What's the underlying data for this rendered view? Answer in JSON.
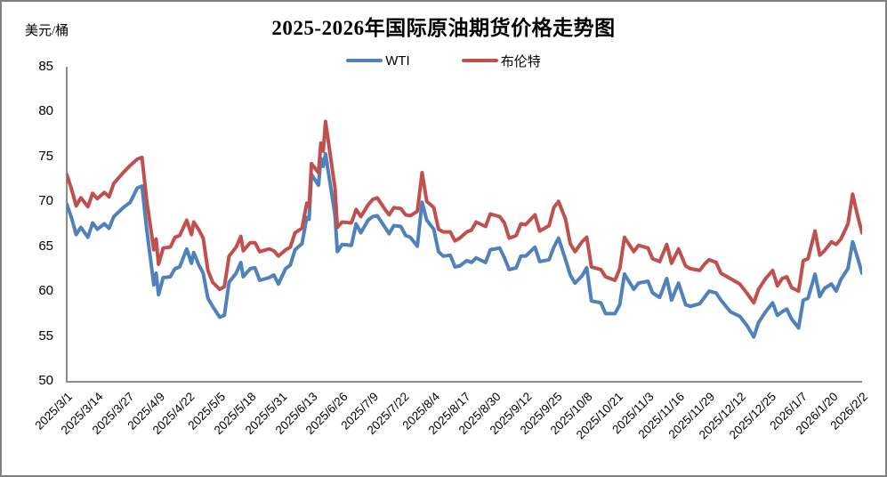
{
  "chart_data": {
    "type": "line",
    "title": "2025-2026年国际原油期货价格走势图",
    "unit_label": "美元/桶",
    "ylabel": "美元/桶",
    "xlabel": "",
    "ylim": [
      50,
      85
    ],
    "yticks": [
      85,
      80,
      75,
      70,
      65,
      60,
      55,
      50
    ],
    "grid": false,
    "legend_position": "top-center",
    "axis_color": "#8c8c8c",
    "x_tick_labels": [
      "2025/3/1",
      "2025/3/14",
      "2025/3/27",
      "2025/4/9",
      "2025/4/22",
      "2025/5/5",
      "2025/5/18",
      "2025/5/31",
      "2025/6/13",
      "2025/6/26",
      "2025/7/9",
      "2025/7/22",
      "2025/8/4",
      "2025/8/17",
      "2025/8/30",
      "2025/9/12",
      "2025/9/25",
      "2025/10/8",
      "2025/10/21",
      "2025/11/3",
      "2025/11/16",
      "2025/11/29",
      "2025/12/12",
      "2025/12/25",
      "2026/1/7",
      "2026/1/20",
      "2026/2/2"
    ],
    "x": [
      "2025/3/1",
      "2025/3/3",
      "2025/3/5",
      "2025/3/7",
      "2025/3/10",
      "2025/3/12",
      "2025/3/14",
      "2025/3/17",
      "2025/3/19",
      "2025/3/21",
      "2025/3/25",
      "2025/3/28",
      "2025/3/31",
      "2025/4/2",
      "2025/4/4",
      "2025/4/7",
      "2025/4/8",
      "2025/4/9",
      "2025/4/11",
      "2025/4/14",
      "2025/4/16",
      "2025/4/18",
      "2025/4/21",
      "2025/4/23",
      "2025/4/24",
      "2025/4/26",
      "2025/4/28",
      "2025/4/30",
      "2025/5/2",
      "2025/5/5",
      "2025/5/7",
      "2025/5/9",
      "2025/5/12",
      "2025/5/14",
      "2025/5/15",
      "2025/5/18",
      "2025/5/20",
      "2025/5/22",
      "2025/5/26",
      "2025/5/28",
      "2025/5/30",
      "2025/6/2",
      "2025/6/4",
      "2025/6/6",
      "2025/6/9",
      "2025/6/11",
      "2025/6/12",
      "2025/6/13",
      "2025/6/16",
      "2025/6/17",
      "2025/6/18",
      "2025/6/19",
      "2025/6/23",
      "2025/6/24",
      "2025/6/26",
      "2025/6/30",
      "2025/7/2",
      "2025/7/4",
      "2025/7/7",
      "2025/7/9",
      "2025/7/11",
      "2025/7/14",
      "2025/7/16",
      "2025/7/18",
      "2025/7/21",
      "2025/7/23",
      "2025/7/25",
      "2025/7/28",
      "2025/7/30",
      "2025/8/1",
      "2025/8/4",
      "2025/8/6",
      "2025/8/8",
      "2025/8/11",
      "2025/8/13",
      "2025/8/15",
      "2025/8/18",
      "2025/8/20",
      "2025/8/22",
      "2025/8/26",
      "2025/8/28",
      "2025/9/1",
      "2025/9/3",
      "2025/9/5",
      "2025/9/8",
      "2025/9/10",
      "2025/9/12",
      "2025/9/16",
      "2025/9/18",
      "2025/9/22",
      "2025/9/24",
      "2025/9/26",
      "2025/9/29",
      "2025/10/1",
      "2025/10/3",
      "2025/10/6",
      "2025/10/8",
      "2025/10/10",
      "2025/10/14",
      "2025/10/16",
      "2025/10/20",
      "2025/10/22",
      "2025/10/24",
      "2025/10/28",
      "2025/10/30",
      "2025/11/3",
      "2025/11/5",
      "2025/11/8",
      "2025/11/11",
      "2025/11/13",
      "2025/11/16",
      "2025/11/19",
      "2025/11/21",
      "2025/11/25",
      "2025/11/27",
      "2025/11/29",
      "2025/12/2",
      "2025/12/4",
      "2025/12/8",
      "2025/12/12",
      "2025/12/15",
      "2025/12/18",
      "2025/12/20",
      "2025/12/23",
      "2025/12/26",
      "2025/12/28",
      "2025/12/30",
      "2026/1/1",
      "2026/1/3",
      "2026/1/6",
      "2026/1/8",
      "2026/1/10",
      "2026/1/13",
      "2026/1/15",
      "2026/1/17",
      "2026/1/20",
      "2026/1/22",
      "2026/1/24",
      "2026/1/27",
      "2026/1/29",
      "2026/1/31",
      "2026/2/2"
    ],
    "series": [
      {
        "name": "WTI",
        "color": "#4F81BD",
        "values": [
          69.7,
          68.2,
          66.3,
          67.1,
          66.0,
          67.6,
          66.9,
          67.5,
          67.0,
          68.3,
          69.3,
          69.9,
          71.5,
          71.7,
          66.9,
          60.7,
          62.0,
          59.6,
          61.5,
          61.6,
          62.5,
          62.7,
          64.7,
          63.1,
          64.3,
          63.0,
          62.0,
          59.2,
          58.3,
          57.1,
          57.3,
          61.0,
          62.0,
          63.2,
          61.6,
          62.5,
          62.6,
          61.2,
          61.5,
          61.8,
          60.8,
          62.5,
          62.9,
          64.6,
          65.3,
          68.2,
          68.0,
          73.0,
          71.8,
          74.8,
          73.9,
          75.3,
          68.5,
          64.4,
          65.2,
          65.1,
          67.5,
          66.5,
          67.9,
          68.3,
          68.4,
          67.2,
          66.4,
          67.3,
          67.2,
          66.2,
          66.0,
          65.0,
          69.9,
          67.9,
          66.9,
          64.4,
          63.9,
          64.0,
          62.7,
          62.8,
          63.4,
          63.2,
          63.7,
          63.2,
          64.6,
          64.8,
          63.7,
          62.4,
          62.6,
          63.9,
          63.9,
          64.9,
          63.3,
          63.5,
          64.9,
          65.9,
          63.5,
          61.8,
          60.9,
          61.7,
          62.6,
          58.9,
          58.7,
          57.5,
          57.5,
          58.5,
          61.9,
          60.2,
          60.9,
          61.1,
          59.8,
          59.3,
          61.4,
          59.0,
          60.9,
          58.5,
          58.3,
          58.6,
          59.3,
          60.0,
          59.8,
          59.0,
          57.7,
          57.2,
          56.2,
          54.9,
          56.5,
          57.7,
          58.7,
          57.3,
          57.7,
          58.0,
          56.9,
          55.9,
          59.0,
          59.2,
          61.9,
          59.4,
          60.3,
          60.8,
          60.0,
          61.3,
          62.5,
          65.5,
          63.8,
          62.0
        ]
      },
      {
        "name": "布伦特",
        "color": "#C0504D",
        "values": [
          73.0,
          71.4,
          69.5,
          70.4,
          69.4,
          70.9,
          70.3,
          71.0,
          70.5,
          72.0,
          73.2,
          74.0,
          74.7,
          74.9,
          70.1,
          64.6,
          65.8,
          63.0,
          64.8,
          64.9,
          66.0,
          66.2,
          67.9,
          66.3,
          67.7,
          66.9,
          65.9,
          62.3,
          61.0,
          60.2,
          60.5,
          63.9,
          64.9,
          66.1,
          64.5,
          65.4,
          65.4,
          64.4,
          64.7,
          64.5,
          63.9,
          64.6,
          64.9,
          66.5,
          67.0,
          69.8,
          69.4,
          74.2,
          73.2,
          76.5,
          75.6,
          78.9,
          71.5,
          67.1,
          67.7,
          67.6,
          69.1,
          68.3,
          69.6,
          70.2,
          70.4,
          69.2,
          68.5,
          69.3,
          69.2,
          68.5,
          68.4,
          68.9,
          73.2,
          70.0,
          69.3,
          66.9,
          66.6,
          66.6,
          65.6,
          65.9,
          66.6,
          66.8,
          67.7,
          67.2,
          68.6,
          68.3,
          67.6,
          65.9,
          66.2,
          67.5,
          67.4,
          68.5,
          66.7,
          67.3,
          69.3,
          70.0,
          68.0,
          65.3,
          64.4,
          65.5,
          66.0,
          62.7,
          62.4,
          61.6,
          61.2,
          62.5,
          66.0,
          64.4,
          65.1,
          64.8,
          63.6,
          63.3,
          65.2,
          63.1,
          64.7,
          62.8,
          62.5,
          62.3,
          63.0,
          63.5,
          63.2,
          62.0,
          61.4,
          60.8,
          59.8,
          58.7,
          60.2,
          61.4,
          62.3,
          60.6,
          61.4,
          61.6,
          60.4,
          60.0,
          63.4,
          63.6,
          66.7,
          64.0,
          64.5,
          65.5,
          65.2,
          65.8,
          67.5,
          70.8,
          68.5,
          66.5
        ]
      }
    ]
  }
}
